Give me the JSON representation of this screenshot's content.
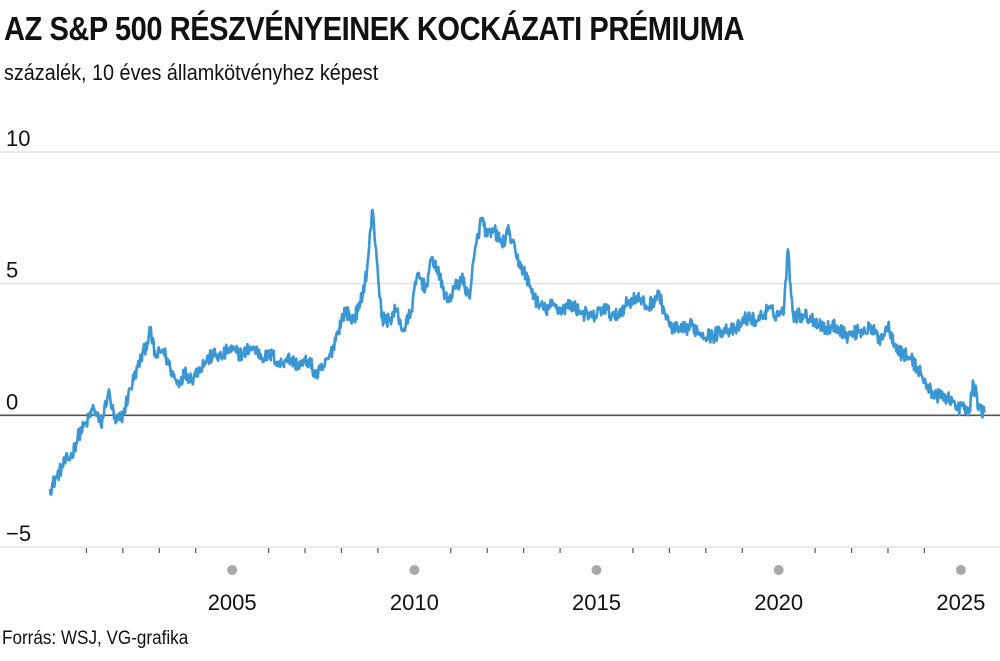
{
  "header": {
    "title": "AZ S&P 500 RÉSZVÉNYEINEK KOCKÁZATI PRÉMIUMA",
    "subtitle": "százalék, 10 éves államkötvényhez képest"
  },
  "footer": {
    "source": "Forrás: WSJ, VG-grafika"
  },
  "colors": {
    "line": "#3a97d3",
    "grid": "#d6d6d6",
    "zero": "#555555",
    "tick_dot": "#a8a8a8"
  },
  "chart_data": {
    "type": "line",
    "title": "AZ S&P 500 RÉSZVÉNYEINEK KOCKÁZATI PRÉMIUMA",
    "ylabel": "százalék, 10 éves államkötvényhez képest",
    "xlabel": "",
    "ylim": [
      -5,
      10
    ],
    "xlim": [
      2000.0,
      2025.8
    ],
    "y_ticks": [
      {
        "value": 10,
        "label": "10"
      },
      {
        "value": 5,
        "label": "5"
      },
      {
        "value": 0,
        "label": "0"
      },
      {
        "value": -5,
        "label": "−5"
      }
    ],
    "x_ticks": [
      {
        "value": 2005,
        "label": "2005"
      },
      {
        "value": 2010,
        "label": "2010"
      },
      {
        "value": 2015,
        "label": "2015"
      },
      {
        "value": 2020,
        "label": "2020"
      },
      {
        "value": 2025,
        "label": "2025"
      }
    ],
    "x_minor_ticks": [
      2001,
      2002,
      2003,
      2004,
      2006,
      2007,
      2008,
      2009,
      2011,
      2012,
      2013,
      2014,
      2016,
      2017,
      2018,
      2019,
      2021,
      2022,
      2023,
      2024
    ],
    "grid": true,
    "legend": "none",
    "series": [
      {
        "x": [
          2000.0,
          2000.2,
          2000.4,
          2000.6,
          2000.8,
          2001.0,
          2001.2,
          2001.4,
          2001.6,
          2001.8,
          2002.0,
          2002.2,
          2002.4,
          2002.6,
          2002.75,
          2002.9,
          2003.1,
          2003.3,
          2003.5,
          2003.7,
          2003.9,
          2004.1,
          2004.3,
          2004.5,
          2004.7,
          2004.9,
          2005.1,
          2005.3,
          2005.5,
          2005.7,
          2005.9,
          2006.1,
          2006.3,
          2006.5,
          2006.7,
          2006.9,
          2007.1,
          2007.3,
          2007.5,
          2007.7,
          2007.9,
          2008.1,
          2008.3,
          2008.5,
          2008.7,
          2008.85,
          2008.95,
          2009.1,
          2009.3,
          2009.5,
          2009.7,
          2009.9,
          2010.1,
          2010.3,
          2010.5,
          2010.7,
          2010.9,
          2011.1,
          2011.3,
          2011.5,
          2011.7,
          2011.85,
          2012.0,
          2012.2,
          2012.4,
          2012.6,
          2012.8,
          2013.0,
          2013.2,
          2013.4,
          2013.6,
          2013.8,
          2014.0,
          2014.3,
          2014.6,
          2014.9,
          2015.2,
          2015.5,
          2015.8,
          2016.1,
          2016.4,
          2016.7,
          2017.0,
          2017.3,
          2017.6,
          2017.9,
          2018.2,
          2018.5,
          2018.8,
          2019.1,
          2019.4,
          2019.7,
          2020.0,
          2020.15,
          2020.25,
          2020.4,
          2020.7,
          2021.0,
          2021.3,
          2021.6,
          2021.9,
          2022.2,
          2022.5,
          2022.8,
          2023.0,
          2023.3,
          2023.6,
          2023.9,
          2024.1,
          2024.4,
          2024.7,
          2024.9,
          2025.05,
          2025.2,
          2025.35,
          2025.5,
          2025.65
        ],
        "y": [
          -2.8,
          -2.3,
          -1.8,
          -1.5,
          -0.7,
          -0.3,
          0.3,
          -0.4,
          0.9,
          -0.3,
          0.0,
          1.0,
          1.8,
          2.5,
          3.2,
          2.2,
          2.5,
          1.8,
          1.2,
          1.6,
          1.4,
          1.8,
          2.1,
          2.3,
          2.2,
          2.5,
          2.4,
          2.3,
          2.6,
          2.4,
          2.2,
          2.3,
          1.9,
          2.2,
          2.0,
          1.9,
          2.1,
          1.5,
          1.8,
          2.3,
          3.2,
          4.0,
          3.6,
          4.1,
          5.5,
          7.8,
          6.3,
          3.7,
          3.6,
          4.0,
          3.2,
          3.9,
          5.4,
          4.8,
          6.0,
          5.2,
          4.3,
          4.8,
          5.2,
          4.5,
          6.5,
          7.5,
          6.8,
          7.0,
          6.5,
          7.0,
          6.0,
          5.5,
          4.8,
          4.2,
          4.0,
          4.2,
          4.0,
          4.2,
          3.9,
          3.7,
          4.1,
          3.7,
          4.2,
          4.5,
          4.1,
          4.6,
          3.4,
          3.2,
          3.4,
          3.1,
          3.0,
          3.3,
          3.2,
          3.7,
          3.6,
          4.0,
          3.8,
          4.1,
          6.3,
          3.8,
          3.8,
          3.6,
          3.3,
          3.4,
          3.0,
          3.2,
          3.3,
          2.9,
          3.4,
          2.4,
          2.2,
          1.6,
          1.0,
          0.7,
          0.7,
          0.2,
          0.4,
          0.0,
          1.2,
          0.3,
          0.1
        ]
      }
    ]
  }
}
